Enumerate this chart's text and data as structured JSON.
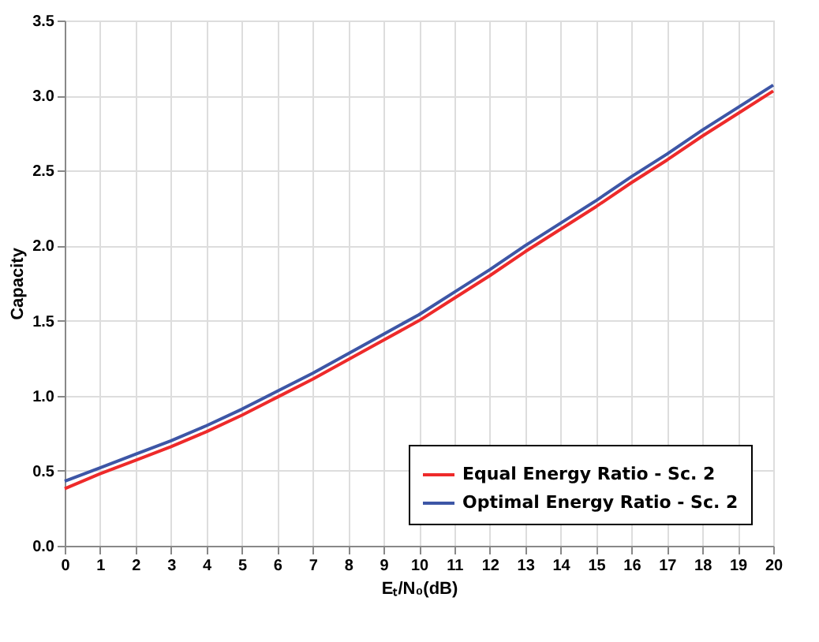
{
  "chart_data": {
    "type": "line",
    "xlabel": "Eₜ/N₀(dB)",
    "ylabel": "Capacity",
    "x": [
      0,
      1,
      2,
      3,
      4,
      5,
      6,
      7,
      8,
      9,
      10,
      11,
      12,
      13,
      14,
      15,
      16,
      17,
      18,
      19,
      20
    ],
    "series": [
      {
        "name": "Equal Energy Ratio - Sc. 2",
        "color": "#ee2a2a",
        "values": [
          0.38,
          0.48,
          0.57,
          0.66,
          0.76,
          0.87,
          0.99,
          1.11,
          1.24,
          1.37,
          1.5,
          1.65,
          1.8,
          1.96,
          2.11,
          2.26,
          2.42,
          2.57,
          2.73,
          2.88,
          3.03
        ]
      },
      {
        "name": "Optimal Energy Ratio - Sc. 2",
        "color": "#3d56a6",
        "values": [
          0.43,
          0.52,
          0.61,
          0.7,
          0.8,
          0.91,
          1.03,
          1.15,
          1.28,
          1.41,
          1.54,
          1.69,
          1.84,
          2.0,
          2.15,
          2.3,
          2.46,
          2.61,
          2.77,
          2.92,
          3.07
        ]
      }
    ],
    "xlim": [
      0,
      20
    ],
    "xticks": [
      0,
      1,
      2,
      3,
      4,
      5,
      6,
      7,
      8,
      9,
      10,
      11,
      12,
      13,
      14,
      15,
      16,
      17,
      18,
      19,
      20
    ],
    "ylim": [
      0,
      3.5
    ],
    "yticks": [
      {
        "value": 0,
        "label": "0.0"
      },
      0.5,
      {
        "value": 1,
        "label": "1.0"
      },
      1.5,
      {
        "value": 2,
        "label": "2.0"
      },
      2.5,
      {
        "value": 3,
        "label": "3.0"
      },
      3.5
    ],
    "grid": true,
    "legend": "bottom right",
    "marker": "none",
    "line_style": "solid"
  }
}
